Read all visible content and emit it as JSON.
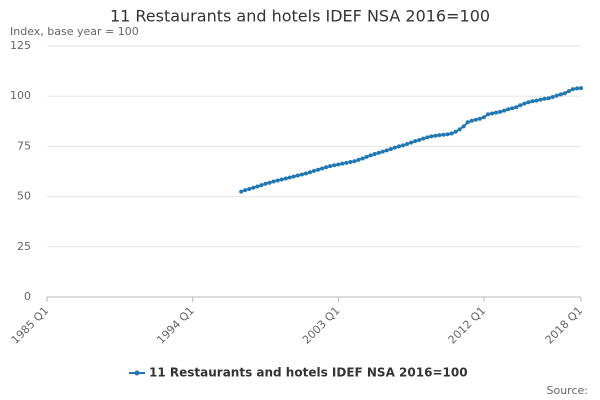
{
  "chart_data": {
    "type": "line",
    "title": "11 Restaurants and hotels IDEF NSA 2016=100",
    "y_label": "Index, base year = 100",
    "source": "Source:",
    "categories": [
      "1985 Q1",
      null,
      null,
      null,
      null,
      null,
      null,
      null,
      null,
      null,
      null,
      null,
      null,
      null,
      null,
      null,
      null,
      null,
      null,
      null,
      null,
      null,
      null,
      null,
      null,
      null,
      null,
      null,
      null,
      null,
      null,
      null,
      null,
      null,
      null,
      null,
      "1994 Q1",
      null,
      null,
      null,
      null,
      null,
      null,
      null,
      null,
      null,
      null,
      null,
      null,
      null,
      null,
      null,
      null,
      null,
      null,
      null,
      null,
      null,
      null,
      null,
      null,
      null,
      null,
      null,
      null,
      null,
      null,
      null,
      null,
      null,
      null,
      null,
      "2003 Q1",
      null,
      null,
      null,
      null,
      null,
      null,
      null,
      null,
      null,
      null,
      null,
      null,
      null,
      null,
      null,
      null,
      null,
      null,
      null,
      null,
      null,
      null,
      null,
      null,
      null,
      null,
      null,
      null,
      null,
      null,
      null,
      null,
      null,
      null,
      null,
      "2012 Q1",
      null,
      null,
      null,
      null,
      null,
      null,
      null,
      null,
      null,
      null,
      null,
      null,
      null,
      null,
      null,
      null,
      null,
      null,
      null,
      null,
      null,
      null,
      null,
      "2018 Q1"
    ],
    "series": [
      {
        "name": "11 Restaurants and hotels IDEF NSA 2016=100",
        "color": "#1f78b4",
        "values": [
          null,
          null,
          null,
          null,
          null,
          null,
          null,
          null,
          null,
          null,
          null,
          null,
          null,
          null,
          null,
          null,
          null,
          null,
          null,
          null,
          null,
          null,
          null,
          null,
          null,
          null,
          null,
          null,
          null,
          null,
          null,
          null,
          null,
          null,
          null,
          null,
          null,
          null,
          null,
          null,
          null,
          null,
          null,
          null,
          null,
          null,
          null,
          null,
          52.5,
          53.2,
          53.8,
          54.4,
          55.0,
          55.7,
          56.4,
          56.9,
          57.5,
          58.0,
          58.5,
          59.0,
          59.5,
          60.0,
          60.5,
          61.0,
          61.5,
          62.1,
          62.8,
          63.4,
          64.0,
          64.6,
          65.2,
          65.6,
          66.0,
          66.4,
          66.8,
          67.2,
          67.6,
          68.3,
          69.0,
          69.8,
          70.5,
          71.2,
          71.8,
          72.4,
          73.0,
          73.7,
          74.4,
          75.0,
          75.5,
          76.2,
          76.9,
          77.6,
          78.2,
          78.9,
          79.5,
          80.0,
          80.3,
          80.6,
          80.8,
          81.0,
          81.4,
          82.3,
          83.5,
          85.0,
          87.0,
          87.8,
          88.3,
          88.8,
          89.5,
          91.0,
          91.4,
          91.8,
          92.2,
          92.8,
          93.5,
          94.0,
          94.5,
          95.5,
          96.3,
          97.0,
          97.5,
          97.8,
          98.3,
          98.7,
          99.0,
          99.6,
          100.3,
          100.9,
          101.5,
          102.5,
          103.5,
          103.9,
          104.0
        ]
      }
    ],
    "ylim": [
      0,
      125
    ],
    "yticks": [
      0,
      25,
      50,
      75,
      100,
      125
    ],
    "grid": true,
    "legend": "bottom"
  }
}
